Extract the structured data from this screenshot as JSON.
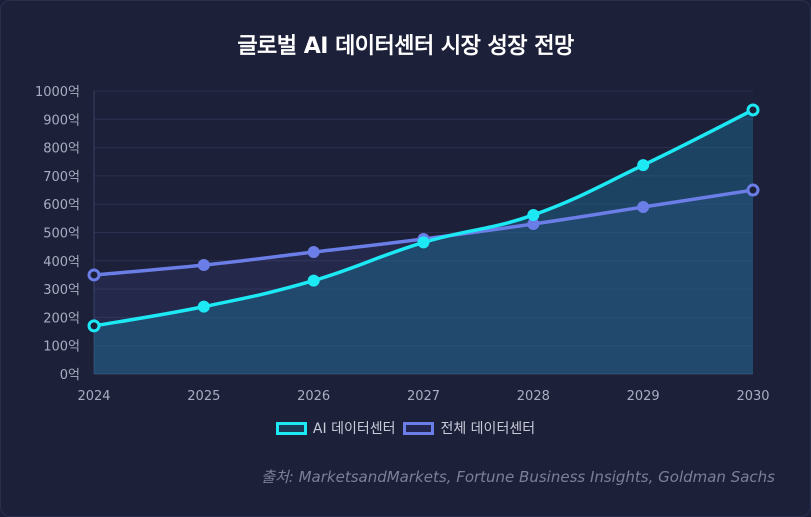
{
  "title": "글로벌 AI 데이터센터 시장 성장 전망",
  "source": "출처: MarketsandMarkets, Fortune Business Insights, Goldman Sachs",
  "chart_data": {
    "type": "line",
    "title": "글로벌 AI 데이터센터 시장 성장 전망",
    "categories": [
      "2024",
      "2025",
      "2026",
      "2027",
      "2028",
      "2029",
      "2030"
    ],
    "ylim": [
      0,
      1000
    ],
    "yticks": [
      0,
      100,
      200,
      300,
      400,
      500,
      600,
      700,
      800,
      900,
      1000
    ],
    "ytick_labels": [
      "0억",
      "100억",
      "200억",
      "300억",
      "400억",
      "500억",
      "600억",
      "700억",
      "800억",
      "900억",
      "1000억"
    ],
    "grid": true,
    "legend_position": "bottom",
    "series": [
      {
        "name": "AI 데이터센터",
        "color": "#1de9f5",
        "fill": true,
        "values": [
          170,
          238,
          330,
          465,
          562,
          738,
          933
        ]
      },
      {
        "name": "전체 데이터센터",
        "color": "#6b7ee8",
        "fill": true,
        "values": [
          350,
          385,
          431,
          477,
          530,
          590,
          650
        ]
      }
    ]
  }
}
